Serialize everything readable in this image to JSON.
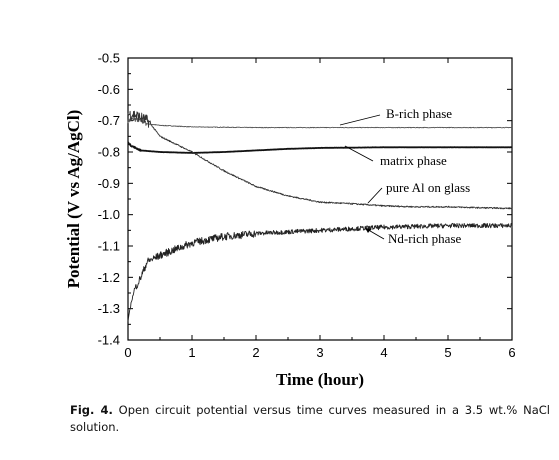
{
  "caption": {
    "label": "Fig. 4.",
    "text": "Open circuit potential versus time curves measured in a 3.5 wt.% NaCl solution."
  },
  "chart_data": {
    "type": "line",
    "xlabel": "Time (hour)",
    "ylabel": "Potential (V vs Ag/AgCl)",
    "xlim": [
      0,
      6
    ],
    "ylim": [
      -1.4,
      -0.5
    ],
    "xticks": [
      0,
      1,
      2,
      3,
      4,
      5,
      6
    ],
    "yticks": [
      -0.5,
      -0.6,
      -0.7,
      -0.8,
      -0.9,
      -1.0,
      -1.1,
      -1.2,
      -1.3,
      -1.4
    ],
    "ytick_labels": [
      "-0.5",
      "-0.6",
      "-0.7",
      "-0.8",
      "-0.9",
      "-1.0",
      "-1.1",
      "-1.2",
      "-1.3",
      "-1.4"
    ],
    "grid": false,
    "legend": "annotations with leader lines on the right",
    "series": [
      {
        "name": "B-rich phase",
        "color": "#555555",
        "noise": 0.008,
        "noise_until": 0.3,
        "x": [
          0,
          0.1,
          0.2,
          0.3,
          0.5,
          1,
          2,
          3,
          4,
          5,
          6
        ],
        "y": [
          -0.7,
          -0.695,
          -0.7,
          -0.71,
          -0.715,
          -0.72,
          -0.722,
          -0.722,
          -0.722,
          -0.722,
          -0.722
        ]
      },
      {
        "name": "matrix phase",
        "color": "#111111",
        "noise": 0.002,
        "noise_until": 0.2,
        "x": [
          0,
          0.05,
          0.2,
          0.5,
          1,
          1.5,
          2,
          2.5,
          3,
          4,
          5,
          6
        ],
        "y": [
          -0.77,
          -0.78,
          -0.795,
          -0.8,
          -0.803,
          -0.8,
          -0.795,
          -0.79,
          -0.787,
          -0.785,
          -0.785,
          -0.785
        ]
      },
      {
        "name": "pure Al on glass",
        "color": "#333333",
        "noise": 0.018,
        "noise_until": 0.35,
        "x": [
          0,
          0.1,
          0.2,
          0.3,
          0.35,
          0.5,
          1,
          1.5,
          2,
          2.5,
          3,
          3.5,
          4,
          4.5,
          5,
          5.5,
          6
        ],
        "y": [
          -0.68,
          -0.68,
          -0.69,
          -0.7,
          -0.71,
          -0.75,
          -0.8,
          -0.86,
          -0.91,
          -0.94,
          -0.96,
          -0.965,
          -0.972,
          -0.975,
          -0.975,
          -0.978,
          -0.98
        ]
      },
      {
        "name": "Nd-rich phase",
        "color": "#222222",
        "noise": 0.012,
        "noise_from": 0.1,
        "x": [
          0,
          0.05,
          0.1,
          0.2,
          0.3,
          0.5,
          0.75,
          1,
          1.5,
          2,
          3,
          4,
          5,
          6
        ],
        "y": [
          -1.34,
          -1.28,
          -1.24,
          -1.2,
          -1.15,
          -1.13,
          -1.11,
          -1.09,
          -1.07,
          -1.06,
          -1.05,
          -1.04,
          -1.035,
          -1.035
        ]
      }
    ]
  }
}
